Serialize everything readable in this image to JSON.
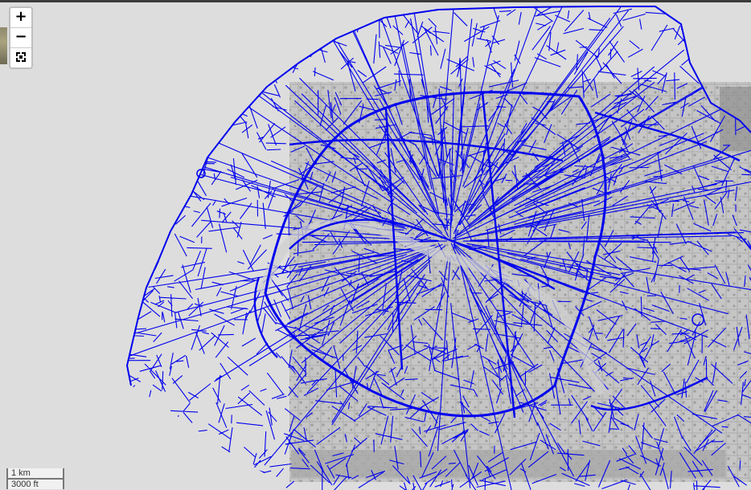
{
  "map": {
    "street_color": "#0000ee",
    "underlay": "historical engraved map of Paris (grayscale)"
  },
  "controls": {
    "zoom_in_label": "+",
    "zoom_out_label": "−",
    "fullscreen_icon": "fullscreen-icon"
  },
  "scale": {
    "metric": "1 km",
    "imperial": "3000 ft"
  }
}
